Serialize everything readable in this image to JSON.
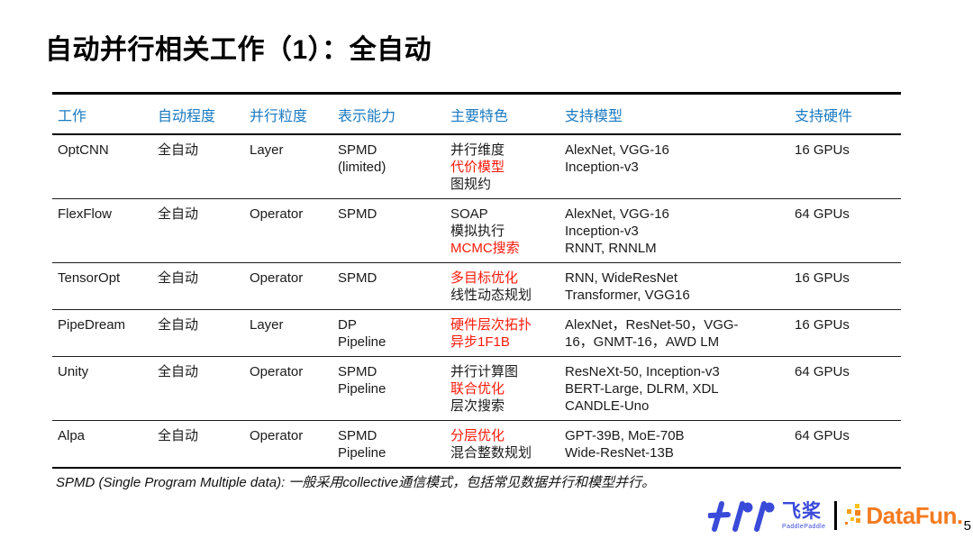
{
  "slide": {
    "title": "自动并行相关工作（1）：全自动",
    "footnote": "SPMD (Single Program Multiple data): 一般采用collective通信模式，包括常见数据并行和模型并行。",
    "page_number": "5"
  },
  "colors": {
    "header_blue": "#1b7ac1",
    "highlight_red": "#fa1a0a",
    "paddle_logo_blue": "#3a4ad9",
    "datafun_logo_orange": "#f47b20"
  },
  "table": {
    "headers": [
      "工作",
      "自动程度",
      "并行粒度",
      "表示能力",
      "主要特色",
      "支持模型",
      "支持硬件"
    ],
    "rows": [
      {
        "cells": [
          [
            {
              "t": "OptCNN"
            }
          ],
          [
            {
              "t": "全自动"
            }
          ],
          [
            {
              "t": "Layer"
            }
          ],
          [
            {
              "t": "SPMD"
            },
            {
              "t": "(limited)"
            }
          ],
          [
            {
              "t": "并行维度"
            },
            {
              "t": "代价模型",
              "r": true
            },
            {
              "t": "图规约"
            }
          ],
          [
            {
              "t": "AlexNet, VGG-16"
            },
            {
              "t": "Inception-v3"
            }
          ],
          [
            {
              "t": "16 GPUs"
            }
          ]
        ]
      },
      {
        "cells": [
          [
            {
              "t": "FlexFlow"
            }
          ],
          [
            {
              "t": "全自动"
            }
          ],
          [
            {
              "t": "Operator"
            }
          ],
          [
            {
              "t": "SPMD"
            }
          ],
          [
            {
              "t": "SOAP"
            },
            {
              "t": "模拟执行"
            },
            {
              "t": "MCMC搜索",
              "r": true
            }
          ],
          [
            {
              "t": "AlexNet, VGG-16"
            },
            {
              "t": "Inception-v3"
            },
            {
              "t": "RNNT, RNNLM"
            }
          ],
          [
            {
              "t": "64 GPUs"
            }
          ]
        ]
      },
      {
        "cells": [
          [
            {
              "t": "TensorOpt"
            }
          ],
          [
            {
              "t": "全自动"
            }
          ],
          [
            {
              "t": "Operator"
            }
          ],
          [
            {
              "t": "SPMD"
            }
          ],
          [
            {
              "t": "多目标优化",
              "r": true
            },
            {
              "t": "线性动态规划"
            }
          ],
          [
            {
              "t": "RNN, WideResNet"
            },
            {
              "t": "Transformer, VGG16"
            }
          ],
          [
            {
              "t": "16 GPUs"
            }
          ]
        ]
      },
      {
        "cells": [
          [
            {
              "t": "PipeDream"
            }
          ],
          [
            {
              "t": "全自动"
            }
          ],
          [
            {
              "t": "Layer"
            }
          ],
          [
            {
              "t": "DP"
            },
            {
              "t": "Pipeline"
            }
          ],
          [
            {
              "t": "硬件层次拓扑",
              "r": true
            },
            {
              "t": "异步1F1B",
              "r": true
            }
          ],
          [
            {
              "t": "AlexNet，ResNet-50，VGG-"
            },
            {
              "t": "16，GNMT-16，AWD LM"
            }
          ],
          [
            {
              "t": "16 GPUs"
            }
          ]
        ]
      },
      {
        "cells": [
          [
            {
              "t": "Unity"
            }
          ],
          [
            {
              "t": "全自动"
            }
          ],
          [
            {
              "t": "Operator"
            }
          ],
          [
            {
              "t": "SPMD"
            },
            {
              "t": "Pipeline"
            }
          ],
          [
            {
              "t": "并行计算图"
            },
            {
              "t": "联合优化",
              "r": true
            },
            {
              "t": "层次搜索"
            }
          ],
          [
            {
              "t": "ResNeXt-50, Inception-v3"
            },
            {
              "t": "BERT-Large, DLRM, XDL"
            },
            {
              "t": "CANDLE-Uno"
            }
          ],
          [
            {
              "t": "64 GPUs"
            }
          ]
        ]
      },
      {
        "cells": [
          [
            {
              "t": "Alpa"
            }
          ],
          [
            {
              "t": "全自动"
            }
          ],
          [
            {
              "t": "Operator"
            }
          ],
          [
            {
              "t": "SPMD"
            },
            {
              "t": "Pipeline"
            }
          ],
          [
            {
              "t": "分层优化",
              "r": true
            },
            {
              "t": "混合整数规划"
            }
          ],
          [
            {
              "t": "GPT-39B, MoE-70B"
            },
            {
              "t": "Wide-ResNet-13B"
            }
          ],
          [
            {
              "t": "64 GPUs"
            }
          ]
        ]
      }
    ]
  },
  "logos": {
    "paddle_cn": "飞桨",
    "paddle_en": "PaddlePaddle",
    "datafun": "DataFun."
  }
}
